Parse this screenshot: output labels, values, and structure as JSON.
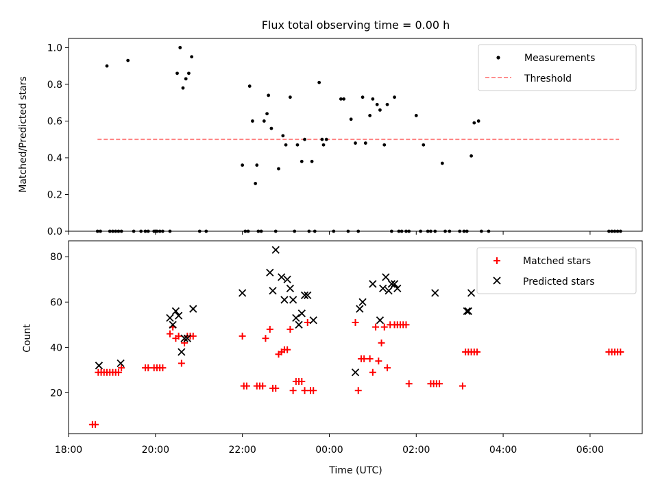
{
  "chart_data": [
    {
      "type": "scatter",
      "title": "Flux total observing time = 0.00 h",
      "xlabel": "",
      "ylabel": "Matched/Predicted stars",
      "ylim": [
        0,
        1.05
      ],
      "xlim": [
        "18:00",
        "07:12"
      ],
      "yticks": [
        "0.0",
        "0.2",
        "0.4",
        "0.6",
        "0.8",
        "1.0"
      ],
      "legend_position": "top-right",
      "series": [
        {
          "name": "Measurements",
          "style": "dot",
          "color": "#000000",
          "x": [
            "18:40",
            "18:44",
            "18:53",
            "18:57",
            "19:01",
            "19:05",
            "19:09",
            "19:13",
            "19:22",
            "19:46",
            "19:58",
            "20:02",
            "20:06",
            "20:10",
            "21:01",
            "22:00",
            "22:04",
            "22:08",
            "22:22",
            "22:26",
            "22:36",
            "22:46",
            "22:56",
            "23:06",
            "23:16",
            "23:26",
            "23:36",
            "23:46",
            "23:56",
            "00:06",
            "00:16",
            "00:26",
            "00:36",
            "00:46",
            "00:56",
            "01:06",
            "01:16",
            "01:26",
            "01:36",
            "01:46",
            "02:06",
            "02:16",
            "02:26",
            "02:36",
            "02:46",
            "03:06",
            "03:16",
            "03:26",
            "06:26",
            "06:30",
            "06:34",
            "06:38",
            "06:42"
          ],
          "y": [
            0,
            0,
            0.9,
            0,
            0,
            0,
            0,
            0,
            0.93,
            0,
            0,
            0,
            0,
            0,
            0,
            0.36,
            0,
            0,
            0,
            0,
            0.74,
            0,
            0.52,
            0.73,
            0.47,
            0.5,
            0.38,
            0.81,
            0.5,
            0,
            0.72,
            0,
            0.48,
            0.73,
            0.63,
            0.69,
            0.47,
            0,
            0,
            0,
            0,
            0,
            0,
            0.37,
            0,
            0,
            0.41,
            0.6,
            0,
            0,
            0,
            0,
            0
          ],
          "extra_points": {
            "x": [
              "20:30",
              "20:34",
              "20:38",
              "20:42",
              "20:46",
              "20:50",
              "22:10",
              "22:14",
              "22:18",
              "22:34",
              "22:40",
              "22:50",
              "23:00",
              "23:12",
              "23:22",
              "23:32",
              "23:40",
              "00:30",
              "00:40",
              "01:00",
              "01:10",
              "01:20",
              "01:30",
              "01:40",
              "01:50",
              "03:00",
              "03:10",
              "03:20",
              "00:20",
              "23:52",
              "23:50",
              "22:30",
              "22:20",
              "00:50",
              "02:00",
              "02:10",
              "02:20",
              "02:40",
              "03:30",
              "03:40",
              "19:30",
              "19:40",
              "19:50",
              "20:00",
              "20:20",
              "21:10"
            ],
            "y": [
              0.86,
              1.0,
              0.78,
              0.83,
              0.86,
              0.95,
              0.79,
              0.6,
              0.26,
              0.64,
              0.56,
              0.34,
              0.47,
              0,
              0.38,
              0,
              0,
              0.61,
              0,
              0.72,
              0.66,
              0.69,
              0.73,
              0,
              0,
              0,
              0,
              0.59,
              0.72,
              0.47,
              0.5,
              0.6,
              0.36,
              0.48,
              0.63,
              0.47,
              0,
              0,
              0,
              0,
              0,
              0,
              0,
              0,
              0,
              0
            ]
          }
        },
        {
          "name": "Threshold",
          "style": "dashed-line",
          "color": "#ff7f7f",
          "x": [
            "18:40",
            "06:40"
          ],
          "y": [
            0.5,
            0.5
          ]
        }
      ]
    },
    {
      "type": "scatter",
      "title": "",
      "xlabel": "Time (UTC)",
      "ylabel": "Count",
      "ylim": [
        2,
        87
      ],
      "xlim": [
        "18:00",
        "07:12"
      ],
      "xticks": [
        "18:00",
        "20:00",
        "22:00",
        "00:00",
        "02:00",
        "04:00",
        "06:00"
      ],
      "yticks": [
        "20",
        "40",
        "60",
        "80"
      ],
      "legend_position": "top-right",
      "series": [
        {
          "name": "Matched stars",
          "marker": "+",
          "color": "#ff0000",
          "x": [
            "18:33",
            "18:37",
            "18:41",
            "18:45",
            "18:49",
            "18:53",
            "18:57",
            "19:01",
            "19:05",
            "19:09",
            "19:13",
            "19:46",
            "19:50",
            "19:58",
            "20:02",
            "20:06",
            "20:10",
            "20:20",
            "20:24",
            "20:28",
            "20:32",
            "20:36",
            "20:40",
            "20:44",
            "20:48",
            "20:52",
            "22:00",
            "22:02",
            "22:06",
            "22:20",
            "22:24",
            "22:28",
            "22:32",
            "22:38",
            "22:42",
            "22:46",
            "22:50",
            "22:54",
            "22:58",
            "23:02",
            "23:06",
            "23:10",
            "23:14",
            "23:18",
            "23:22",
            "23:26",
            "23:30",
            "23:34",
            "23:38",
            "00:36",
            "00:40",
            "00:44",
            "00:48",
            "00:56",
            "01:00",
            "01:04",
            "01:08",
            "01:12",
            "01:16",
            "01:20",
            "01:24",
            "01:30",
            "01:34",
            "01:38",
            "01:42",
            "01:46",
            "01:50",
            "02:20",
            "02:24",
            "02:28",
            "02:32",
            "03:04",
            "03:08",
            "03:12",
            "03:16",
            "03:20",
            "03:24",
            "06:26",
            "06:30",
            "06:34",
            "06:38",
            "06:42"
          ],
          "y": [
            6,
            6,
            29,
            29,
            29,
            29,
            29,
            29,
            29,
            29,
            31,
            31,
            31,
            31,
            31,
            31,
            31,
            46,
            49,
            44,
            45,
            33,
            42,
            45,
            45,
            45,
            45,
            23,
            23,
            23,
            23,
            23,
            44,
            48,
            22,
            22,
            37,
            38,
            39,
            39,
            48,
            21,
            25,
            25,
            25,
            21,
            51,
            21,
            21,
            51,
            21,
            35,
            35,
            35,
            29,
            49,
            34,
            42,
            49,
            31,
            50,
            50,
            50,
            50,
            50,
            50,
            24,
            24,
            24,
            24,
            24,
            23,
            38,
            38,
            38,
            38,
            38,
            38,
            38,
            38,
            38,
            38
          ]
        },
        {
          "name": "Predicted stars",
          "marker": "x",
          "color": "#000000",
          "x": [
            "18:42",
            "19:12",
            "20:20",
            "20:24",
            "20:28",
            "20:32",
            "20:36",
            "20:40",
            "20:44",
            "20:52",
            "22:00",
            "22:38",
            "22:42",
            "22:46",
            "22:54",
            "22:58",
            "23:02",
            "23:06",
            "23:10",
            "23:14",
            "23:18",
            "23:22",
            "23:26",
            "23:30",
            "23:38",
            "00:36",
            "00:42",
            "00:46",
            "01:00",
            "01:10",
            "01:14",
            "01:18",
            "01:22",
            "01:26",
            "01:30",
            "01:34",
            "02:26",
            "03:10",
            "03:12",
            "03:16"
          ],
          "y": [
            32,
            33,
            53,
            50,
            56,
            54,
            38,
            44,
            44,
            57,
            64,
            73,
            65,
            83,
            71,
            61,
            70,
            66,
            61,
            53,
            50,
            55,
            63,
            63,
            52,
            29,
            57,
            60,
            68,
            52,
            66,
            71,
            65,
            68,
            68,
            66,
            64,
            56,
            56,
            64
          ]
        }
      ]
    }
  ]
}
